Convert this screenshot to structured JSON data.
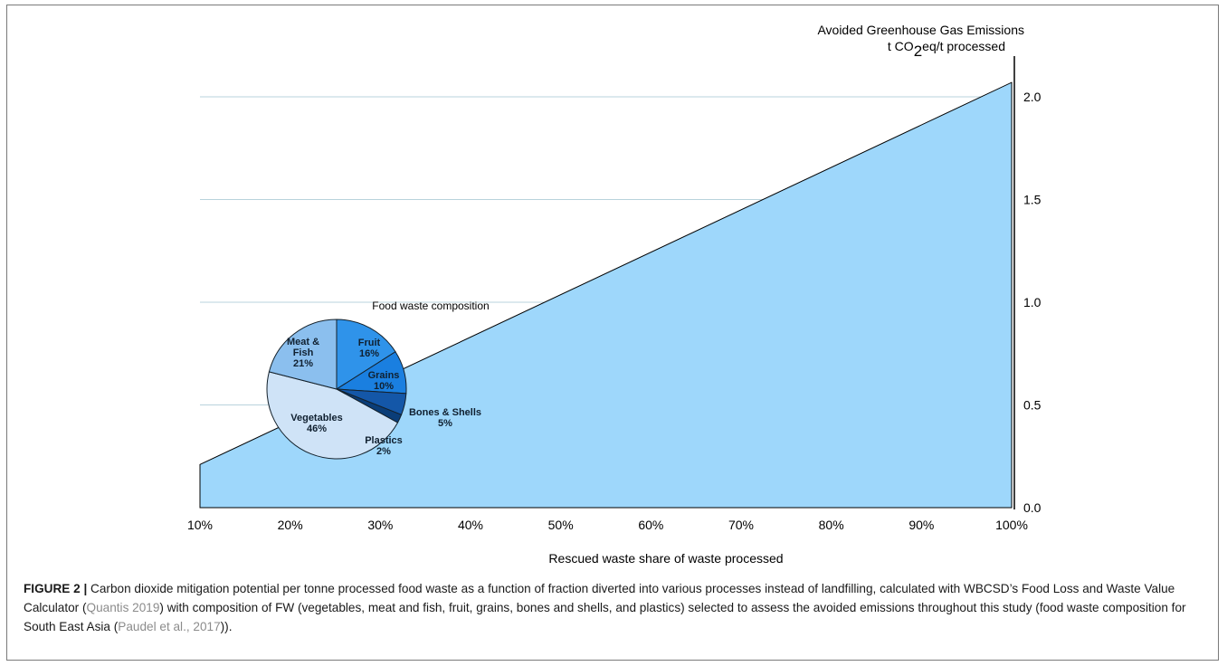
{
  "chart_data": [
    {
      "type": "area",
      "title": "Avoided Greenhouse Gas Emissions",
      "ylabel": "t CO2eq/t processed",
      "ylabel_main": "t CO",
      "ylabel_sub": "2",
      "ylabel_tail": "eq/t processed",
      "xlabel": "Rescued waste share of waste processed",
      "x": [
        10,
        100
      ],
      "y": [
        0.21,
        2.07
      ],
      "xlim": [
        10,
        100
      ],
      "ylim": [
        0,
        2.0
      ],
      "xticks": [
        "10%",
        "20%",
        "30%",
        "40%",
        "50%",
        "60%",
        "70%",
        "80%",
        "90%",
        "100%"
      ],
      "yticks": [
        "0.0",
        "0.5",
        "1.0",
        "1.5",
        "2.0"
      ],
      "grid": "horizontal",
      "fill_color": "#9ed7fb"
    },
    {
      "type": "pie",
      "title": "Food waste composition",
      "slices": [
        {
          "label": "Fruit",
          "value": 16,
          "text": "16%",
          "color": "#2f93ea"
        },
        {
          "label": "Grains",
          "value": 10,
          "text": "10%",
          "color": "#1a7fe0"
        },
        {
          "label": "Bones & Shells",
          "value": 5,
          "text": "5%",
          "color": "#1457a8"
        },
        {
          "label": "Plastics",
          "value": 2,
          "text": "2%",
          "color": "#0a3d78"
        },
        {
          "label": "Vegetables",
          "value": 46,
          "text": "46%",
          "color": "#cfe3f7"
        },
        {
          "label": "Meat & Fish",
          "value": 21,
          "text": "21%",
          "color": "#8bbfee"
        }
      ]
    }
  ],
  "caption": {
    "figure_label": "FIGURE 2 |",
    "text_1": " Carbon dioxide mitigation potential per tonne processed food waste as a function of fraction diverted into various processes instead of landfilling, calculated with WBCSD’s Food Loss and Waste Value Calculator (",
    "ref_1": "Quantis 2019",
    "text_2": ") with composition of FW (vegetables, meat and fish, fruit, grains, bones and shells, and plastics) selected to assess the avoided emissions throughout this study (food waste composition for South East Asia (",
    "ref_2": "Paudel et al., 2017",
    "text_3": "))."
  }
}
